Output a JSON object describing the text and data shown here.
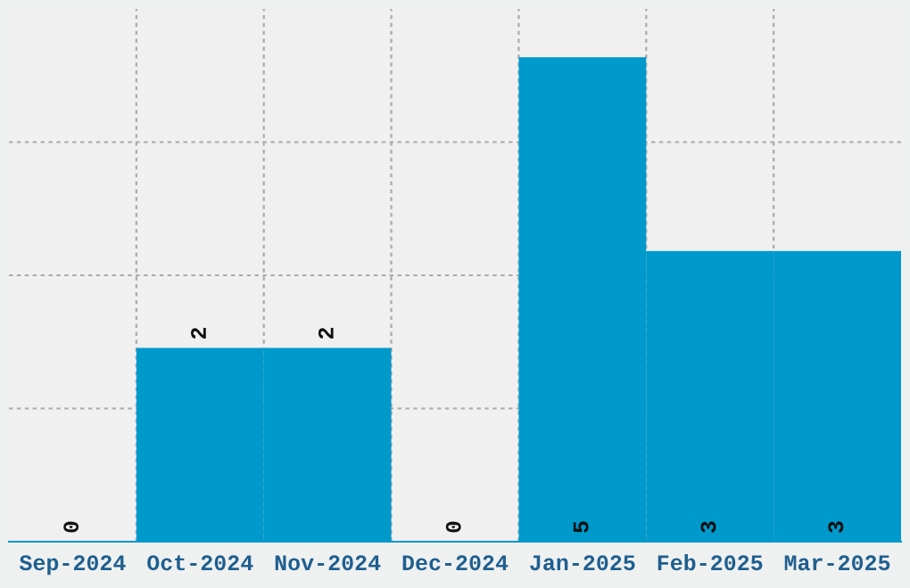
{
  "chart_data": {
    "type": "bar",
    "categories": [
      "Sep-2024",
      "Oct-2024",
      "Nov-2024",
      "Dec-2024",
      "Jan-2025",
      "Feb-2025",
      "Mar-2025"
    ],
    "values": [
      0,
      2,
      2,
      0,
      5,
      3,
      3
    ],
    "color": "#0099cc",
    "ylim": [
      0,
      5.5
    ],
    "yticks": [
      {
        "value": 1.375,
        "label": null
      },
      {
        "value": 2.75,
        "label": null
      },
      {
        "value": 4.125,
        "label": null
      }
    ],
    "tick_labels": "x",
    "grid": true,
    "data_labels": true
  }
}
